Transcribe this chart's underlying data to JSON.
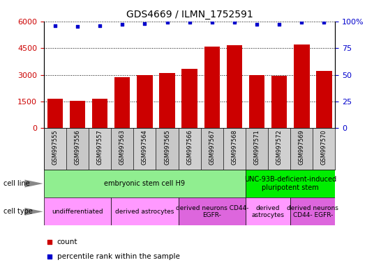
{
  "title": "GDS4669 / ILMN_1752591",
  "samples": [
    "GSM997555",
    "GSM997556",
    "GSM997557",
    "GSM997563",
    "GSM997564",
    "GSM997565",
    "GSM997566",
    "GSM997567",
    "GSM997568",
    "GSM997571",
    "GSM997572",
    "GSM997569",
    "GSM997570"
  ],
  "counts": [
    1650,
    1530,
    1650,
    2850,
    3000,
    3100,
    3350,
    4600,
    4650,
    3000,
    2950,
    4700,
    3200
  ],
  "percentiles": [
    96,
    95,
    96,
    97,
    98,
    99,
    99,
    99,
    99,
    97,
    97,
    99,
    99
  ],
  "bar_color": "#cc0000",
  "dot_color": "#0000cc",
  "ylim_left": [
    0,
    6000
  ],
  "ylim_right": [
    0,
    100
  ],
  "yticks_left": [
    0,
    1500,
    3000,
    4500,
    6000
  ],
  "yticks_right": [
    0,
    25,
    50,
    75,
    100
  ],
  "cell_line_groups": [
    {
      "label": "embryonic stem cell H9",
      "start": 0,
      "end": 9,
      "color": "#90EE90"
    },
    {
      "label": "UNC-93B-deficient-induced\npluripotent stem",
      "start": 9,
      "end": 13,
      "color": "#00ee00"
    }
  ],
  "cell_type_groups": [
    {
      "label": "undifferentiated",
      "start": 0,
      "end": 3,
      "color": "#ff99ff"
    },
    {
      "label": "derived astrocytes",
      "start": 3,
      "end": 6,
      "color": "#ff99ff"
    },
    {
      "label": "derived neurons CD44-\nEGFR-",
      "start": 6,
      "end": 9,
      "color": "#dd66dd"
    },
    {
      "label": "derived\nastrocytes",
      "start": 9,
      "end": 11,
      "color": "#ff99ff"
    },
    {
      "label": "derived neurons\nCD44- EGFR-",
      "start": 11,
      "end": 13,
      "color": "#dd66dd"
    }
  ],
  "tick_label_color_left": "#cc0000",
  "tick_label_color_right": "#0000cc"
}
